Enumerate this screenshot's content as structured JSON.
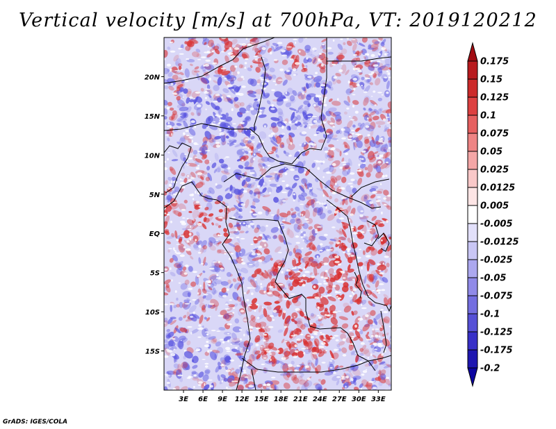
{
  "title": "Vertical velocity [m/s] at 700hPa, VT: 2019120212",
  "footer": "GrADS: IGES/COLA",
  "map": {
    "lon_range": [
      0,
      35
    ],
    "lat_range": [
      -20,
      25
    ],
    "x_ticks": [
      "3E",
      "6E",
      "9E",
      "12E",
      "15E",
      "18E",
      "21E",
      "24E",
      "27E",
      "30E",
      "33E"
    ],
    "y_ticks": [
      "20N",
      "15N",
      "10N",
      "5N",
      "EQ",
      "5S",
      "10S",
      "15S"
    ],
    "field_colors": {
      "positive": "#d93030",
      "negative": "#5a55e0",
      "zero": "#ffffff"
    }
  },
  "colorbar": {
    "labels": [
      "0.175",
      "0.15",
      "0.125",
      "0.1",
      "0.075",
      "0.05",
      "0.025",
      "0.0125",
      "0.005",
      "-0.005",
      "-0.0125",
      "-0.025",
      "-0.05",
      "-0.075",
      "-0.1",
      "-0.125",
      "-0.175",
      "-0.2"
    ],
    "colors": [
      "#a10c12",
      "#b81a1e",
      "#cc2a2a",
      "#dd4040",
      "#e66060",
      "#ee8484",
      "#f4a6a6",
      "#f9c8c8",
      "#fde5e5",
      "#ffffff",
      "#e2e0fa",
      "#c9c6f5",
      "#aca8ef",
      "#908ae8",
      "#746ee0",
      "#5650d6",
      "#3830c8",
      "#1e16b0",
      "#0c04a0"
    ]
  }
}
